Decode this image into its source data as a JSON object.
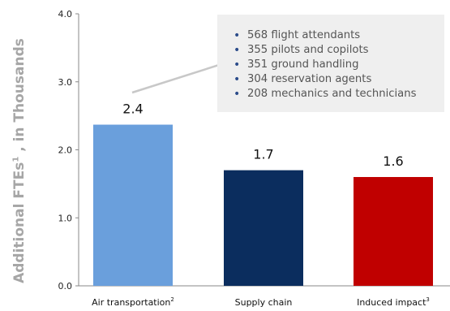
{
  "chart_data": {
    "type": "bar",
    "ylabel_main": "Additional FTEs",
    "ylabel_sup": "1",
    "ylabel_tail": " , in Thousands",
    "ylim": [
      0,
      4
    ],
    "yticks": [
      "0.0",
      "1.0",
      "2.0",
      "3.0",
      "4.0"
    ],
    "categories": [
      {
        "label": "Air transportation",
        "sup": "2"
      },
      {
        "label": "Supply chain",
        "sup": ""
      },
      {
        "label": "Induced impact",
        "sup": "3"
      }
    ],
    "values": [
      2.37,
      1.7,
      1.6
    ],
    "data_labels": [
      "2.4",
      "1.7",
      "1.6"
    ],
    "colors": [
      "#6a9fdc",
      "#0b2d5e",
      "#c00000"
    ]
  },
  "callout": {
    "items": [
      "568 flight attendants",
      "355 pilots and copilots",
      "351 ground handling",
      "304 reservation agents",
      "208 mechanics and technicians"
    ],
    "bullet_color": "#2b4c8a",
    "background": "#efefef"
  }
}
